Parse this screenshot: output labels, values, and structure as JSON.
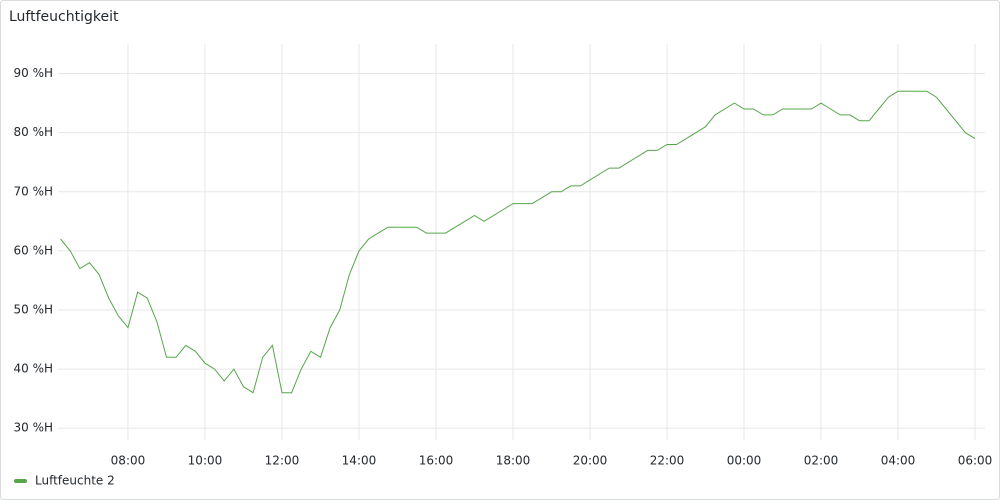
{
  "chart_data": {
    "type": "line",
    "title": "Luftfeuchtigkeit",
    "x": [
      "06:15",
      "06:30",
      "06:45",
      "07:00",
      "07:15",
      "07:30",
      "07:45",
      "08:00",
      "08:15",
      "08:30",
      "08:45",
      "09:00",
      "09:15",
      "09:30",
      "09:45",
      "10:00",
      "10:15",
      "10:30",
      "10:45",
      "11:00",
      "11:15",
      "11:30",
      "11:45",
      "12:00",
      "12:15",
      "12:30",
      "12:45",
      "13:00",
      "13:15",
      "13:30",
      "13:45",
      "14:00",
      "14:15",
      "14:30",
      "14:45",
      "15:00",
      "15:15",
      "15:30",
      "15:45",
      "16:00",
      "16:15",
      "16:30",
      "16:45",
      "17:00",
      "17:15",
      "17:30",
      "17:45",
      "18:00",
      "18:15",
      "18:30",
      "18:45",
      "19:00",
      "19:15",
      "19:30",
      "19:45",
      "20:00",
      "20:15",
      "20:30",
      "20:45",
      "21:00",
      "21:15",
      "21:30",
      "21:45",
      "22:00",
      "22:15",
      "22:30",
      "22:45",
      "23:00",
      "23:15",
      "23:30",
      "23:45",
      "00:00",
      "00:15",
      "00:30",
      "00:45",
      "01:00",
      "01:15",
      "01:30",
      "01:45",
      "02:00",
      "02:15",
      "02:30",
      "02:45",
      "03:00",
      "03:15",
      "03:30",
      "03:45",
      "04:00",
      "04:15",
      "04:30",
      "04:45",
      "05:00",
      "05:15",
      "05:30",
      "05:45",
      "06:00"
    ],
    "series": [
      {
        "name": "Luftfeuchte 2",
        "color": "#56a64b",
        "values": [
          62,
          60,
          57,
          58,
          56,
          52,
          49,
          47,
          53,
          52,
          48,
          42,
          42,
          44,
          43,
          41,
          40,
          38,
          40,
          37,
          36,
          42,
          44,
          36,
          36,
          40,
          43,
          42,
          47,
          50,
          56,
          60,
          62,
          63,
          64,
          64,
          64,
          64,
          63,
          63,
          63,
          64,
          65,
          66,
          65,
          66,
          67,
          68,
          68,
          68,
          69,
          70,
          70,
          71,
          71,
          72,
          73,
          74,
          74,
          75,
          76,
          77,
          77,
          78,
          78,
          79,
          80,
          81,
          83,
          84,
          85,
          84,
          84,
          83,
          83,
          84,
          84,
          84,
          84,
          85,
          84,
          83,
          83,
          82,
          82,
          84,
          86,
          87,
          87,
          87,
          87,
          86,
          84,
          82,
          80,
          79
        ]
      }
    ],
    "xticks": [
      "08:00",
      "10:00",
      "12:00",
      "14:00",
      "16:00",
      "18:00",
      "20:00",
      "22:00",
      "00:00",
      "02:00",
      "04:00",
      "06:00"
    ],
    "ylim": [
      28,
      95
    ],
    "yticks": [
      {
        "value": 30,
        "label": "30 %H"
      },
      {
        "value": 40,
        "label": "40 %H"
      },
      {
        "value": 50,
        "label": "50 %H"
      },
      {
        "value": 60,
        "label": "60 %H"
      },
      {
        "value": 70,
        "label": "70 %H"
      },
      {
        "value": 80,
        "label": "80 %H"
      },
      {
        "value": 90,
        "label": "90 %H"
      }
    ],
    "grid": true
  }
}
